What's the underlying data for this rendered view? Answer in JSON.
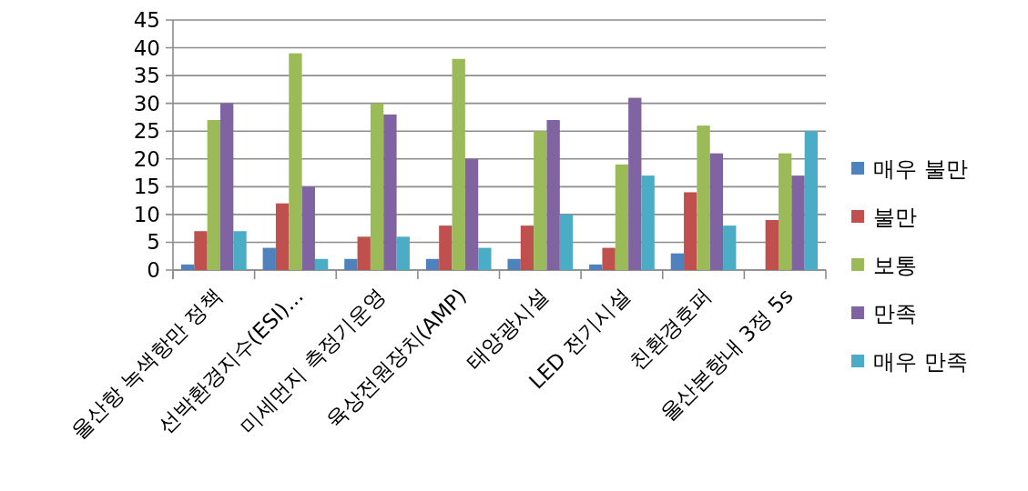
{
  "chart_data": {
    "type": "bar",
    "categories": [
      "울산항 녹색항만 정책",
      "선박환경지수(ESI)...",
      "미세먼지 측정기운영",
      "육상전원장치(AMP)",
      "태양광시설",
      "LED 전기시설",
      "친환경호퍼",
      "울산본항내 3정 5s"
    ],
    "series": [
      {
        "name": "매우 불만",
        "color": "#4f81bd",
        "values": [
          1,
          4,
          2,
          2,
          2,
          1,
          3,
          0
        ]
      },
      {
        "name": "불만",
        "color": "#c0504d",
        "values": [
          7,
          12,
          6,
          8,
          8,
          4,
          14,
          9
        ]
      },
      {
        "name": "보통",
        "color": "#9bbb59",
        "values": [
          27,
          39,
          30,
          38,
          25,
          19,
          26,
          21
        ]
      },
      {
        "name": "만족",
        "color": "#8064a2",
        "values": [
          30,
          15,
          28,
          20,
          27,
          31,
          21,
          17
        ]
      },
      {
        "name": "매우 만족",
        "color": "#4bacc6",
        "values": [
          7,
          2,
          6,
          4,
          10,
          17,
          8,
          25
        ]
      }
    ],
    "ylim": [
      0,
      45
    ],
    "yticks": [
      0,
      5,
      10,
      15,
      20,
      25,
      30,
      35,
      40,
      45
    ],
    "grid": "y",
    "legend": "right"
  }
}
